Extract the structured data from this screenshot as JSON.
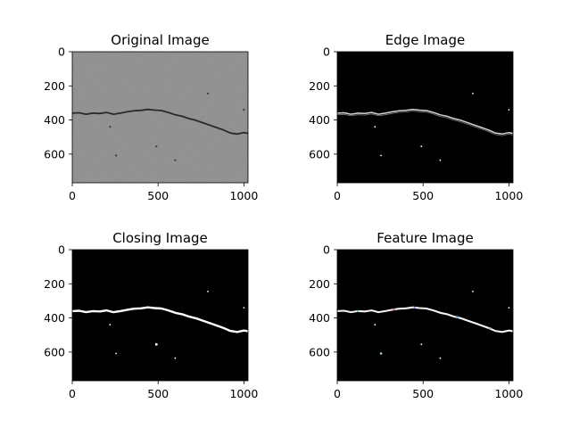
{
  "chart_data": [
    {
      "type": "image",
      "title": "Original Image",
      "x_ticks": [
        0,
        500,
        1000
      ],
      "y_ticks": [
        0,
        200,
        400,
        600
      ],
      "xlim": [
        0,
        1024
      ],
      "ylim": [
        0,
        768
      ],
      "style": "grayscale-texture"
    },
    {
      "type": "image",
      "title": "Edge Image",
      "x_ticks": [
        0,
        500,
        1000
      ],
      "y_ticks": [
        0,
        200,
        400,
        600
      ],
      "xlim": [
        0,
        1024
      ],
      "ylim": [
        0,
        768
      ],
      "style": "edge-on-black"
    },
    {
      "type": "image",
      "title": "Closing Image",
      "x_ticks": [
        0,
        500,
        1000
      ],
      "y_ticks": [
        0,
        200,
        400,
        600
      ],
      "xlim": [
        0,
        1024
      ],
      "ylim": [
        0,
        768
      ],
      "style": "mask-on-black"
    },
    {
      "type": "image",
      "title": "Feature Image",
      "x_ticks": [
        0,
        500,
        1000
      ],
      "y_ticks": [
        0,
        200,
        400,
        600
      ],
      "xlim": [
        0,
        1024
      ],
      "ylim": [
        0,
        768
      ],
      "style": "feature-on-black"
    }
  ],
  "crack_path": [
    [
      0,
      360
    ],
    [
      40,
      358
    ],
    [
      80,
      366
    ],
    [
      120,
      360
    ],
    [
      160,
      362
    ],
    [
      200,
      356
    ],
    [
      240,
      366
    ],
    [
      280,
      360
    ],
    [
      320,
      352
    ],
    [
      360,
      346
    ],
    [
      400,
      344
    ],
    [
      440,
      338
    ],
    [
      480,
      342
    ],
    [
      520,
      345
    ],
    [
      560,
      356
    ],
    [
      600,
      370
    ],
    [
      640,
      378
    ],
    [
      680,
      392
    ],
    [
      720,
      402
    ],
    [
      760,
      416
    ],
    [
      800,
      430
    ],
    [
      840,
      444
    ],
    [
      880,
      458
    ],
    [
      920,
      476
    ],
    [
      960,
      482
    ],
    [
      1000,
      474
    ],
    [
      1024,
      478
    ]
  ],
  "specks": [
    [
      490,
      555
    ],
    [
      600,
      636
    ],
    [
      255,
      608
    ],
    [
      1000,
      340
    ],
    [
      790,
      245
    ],
    [
      220,
      440
    ]
  ],
  "colors": {
    "axes": "#000000",
    "background": "#000000",
    "crack_dark": "#2a2a2a",
    "original_base": "#9c9c9c",
    "edge": "#e0e0e0",
    "mask": "#ffffff"
  }
}
